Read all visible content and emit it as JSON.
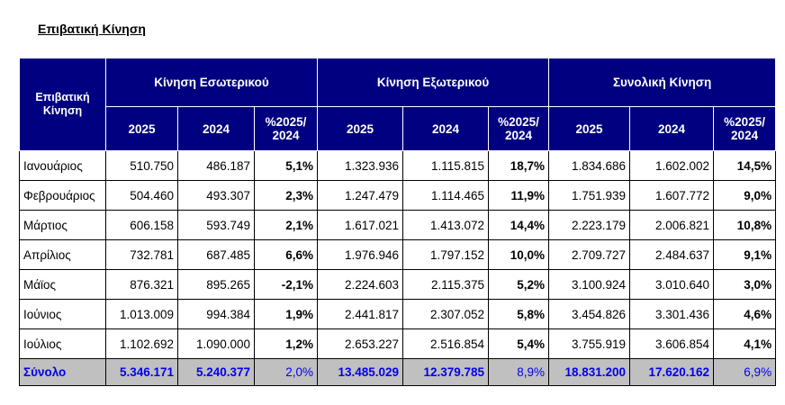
{
  "title": "Επιβατική Κίνηση",
  "header": {
    "row_label": "Επιβατική Κίνηση",
    "groups": [
      "Κίνηση Εσωτερικού",
      "Κίνηση Εξωτερικού",
      "Συνολική Κίνηση"
    ],
    "columns": [
      "2025",
      "2024",
      "%2025/ 2024",
      "2025",
      "2024",
      "%2025/ 2024",
      "2025",
      "2024",
      "%2025/ 2024"
    ]
  },
  "rows": [
    {
      "month": "Ιανουάριος",
      "values": [
        "510.750",
        "486.187",
        "5,1%",
        "1.323.936",
        "1.115.815",
        "18,7%",
        "1.834.686",
        "1.602.002",
        "14,5%"
      ]
    },
    {
      "month": "Φεβρουάριος",
      "values": [
        "504.460",
        "493.307",
        "2,3%",
        "1.247.479",
        "1.114.465",
        "11,9%",
        "1.751.939",
        "1.607.772",
        "9,0%"
      ]
    },
    {
      "month": "Μάρτιος",
      "values": [
        "606.158",
        "593.749",
        "2,1%",
        "1.617.021",
        "1.413.072",
        "14,4%",
        "2.223.179",
        "2.006.821",
        "10,8%"
      ]
    },
    {
      "month": "Απρίλιος",
      "values": [
        "732.781",
        "687.485",
        "6,6%",
        "1.976.946",
        "1.797.152",
        "10,0%",
        "2.709.727",
        "2.484.637",
        "9,1%"
      ]
    },
    {
      "month": "Μάϊος",
      "values": [
        "876.321",
        "895.265",
        "-2,1%",
        "2.224.603",
        "2.115.375",
        "5,2%",
        "3.100.924",
        "3.010.640",
        "3,0%"
      ]
    },
    {
      "month": "Ιούνιος",
      "values": [
        "1.013.009",
        "994.384",
        "1,9%",
        "2.441.817",
        "2.307.052",
        "5,8%",
        "3.454.826",
        "3.301.436",
        "4,6%"
      ]
    },
    {
      "month": "Ιούλιος",
      "values": [
        "1.102.692",
        "1.090.000",
        "1,2%",
        "2.653.227",
        "2.516.854",
        "5,4%",
        "3.755.919",
        "3.606.854",
        "4,1%"
      ]
    }
  ],
  "total": {
    "month": "Σύνολο",
    "values": [
      "5.346.171",
      "5.240.377",
      "2,0%",
      "13.485.029",
      "12.379.785",
      "8,9%",
      "18.831.200",
      "17.620.162",
      "6,9%"
    ]
  }
}
